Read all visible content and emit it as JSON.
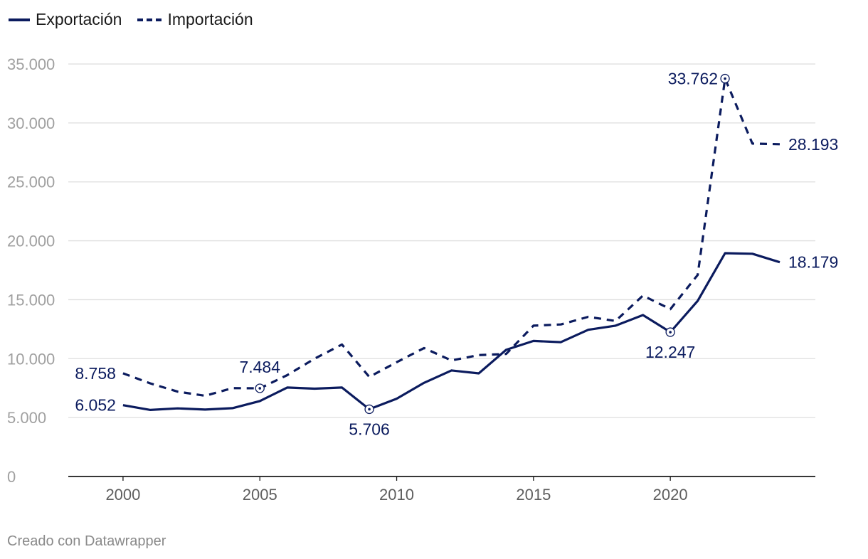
{
  "chart_data": {
    "type": "line",
    "title": "",
    "xlabel": "",
    "ylabel": "",
    "ylim": [
      0,
      35000
    ],
    "xlim": [
      1998,
      2025.3
    ],
    "y_ticks": [
      0,
      5000,
      10000,
      15000,
      20000,
      25000,
      30000,
      35000
    ],
    "y_tick_labels": [
      "0",
      "5.000",
      "10.000",
      "15.000",
      "20.000",
      "25.000",
      "30.000",
      "35.000"
    ],
    "x_ticks": [
      2000,
      2005,
      2010,
      2015,
      2020
    ],
    "x_tick_labels": [
      "2000",
      "2005",
      "2010",
      "2015",
      "2020"
    ],
    "grid": true,
    "legend_position": "top-left",
    "x": [
      2000,
      2001,
      2002,
      2003,
      2004,
      2005,
      2006,
      2007,
      2008,
      2009,
      2010,
      2011,
      2012,
      2013,
      2014,
      2015,
      2016,
      2017,
      2018,
      2019,
      2020,
      2021,
      2022,
      2023,
      2024
    ],
    "series": [
      {
        "name": "Exportación",
        "style": "solid",
        "color": "#0b1b5e",
        "values": [
          6052,
          5650,
          5780,
          5680,
          5800,
          6400,
          7550,
          7450,
          7550,
          5706,
          6600,
          7950,
          9000,
          8750,
          10750,
          11500,
          11400,
          12450,
          12800,
          13700,
          12247,
          14900,
          18950,
          18900,
          18179
        ]
      },
      {
        "name": "Importación",
        "style": "dashed",
        "color": "#0b1b5e",
        "values": [
          8758,
          7900,
          7200,
          6850,
          7500,
          7484,
          8600,
          10000,
          11200,
          8450,
          9700,
          10900,
          9850,
          10300,
          10400,
          12800,
          12900,
          13550,
          13200,
          15350,
          14200,
          17100,
          33762,
          28250,
          28193
        ]
      }
    ],
    "annotations": [
      {
        "series": 0,
        "index": 0,
        "label": "6.052",
        "marker": false,
        "anchor": "left"
      },
      {
        "series": 0,
        "index": 9,
        "label": "5.706",
        "marker": true,
        "anchor": "below"
      },
      {
        "series": 0,
        "index": 20,
        "label": "12.247",
        "marker": true,
        "anchor": "below"
      },
      {
        "series": 0,
        "index": 24,
        "label": "18.179",
        "marker": false,
        "anchor": "right"
      },
      {
        "series": 1,
        "index": 0,
        "label": "8.758",
        "marker": false,
        "anchor": "left"
      },
      {
        "series": 1,
        "index": 5,
        "label": "7.484",
        "marker": true,
        "anchor": "above"
      },
      {
        "series": 1,
        "index": 22,
        "label": "33.762",
        "marker": true,
        "anchor": "left"
      },
      {
        "series": 1,
        "index": 24,
        "label": "28.193",
        "marker": false,
        "anchor": "right"
      }
    ]
  },
  "legend": {
    "items": [
      "Exportación",
      "Importación"
    ]
  },
  "credit": "Creado con Datawrapper"
}
